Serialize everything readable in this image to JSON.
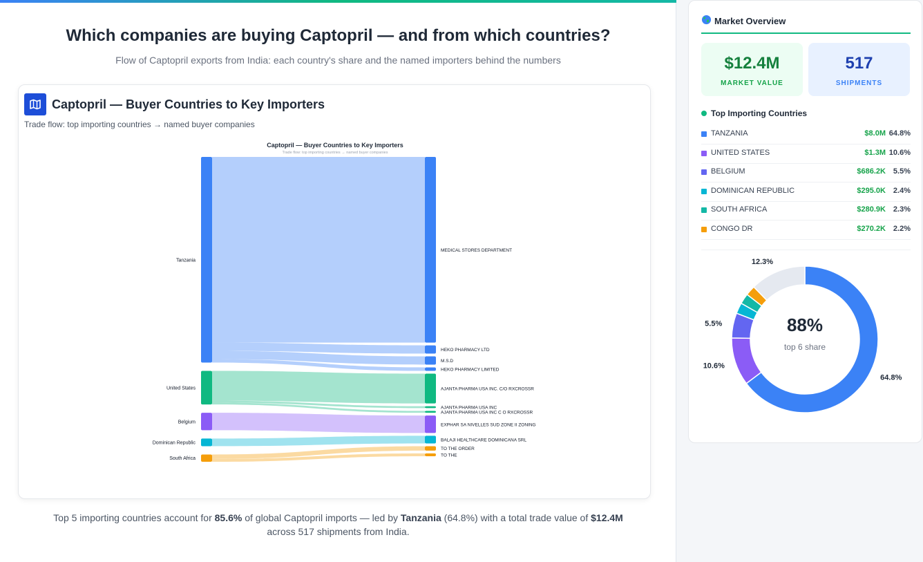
{
  "page": {
    "headline": "Which companies are buying Captopril — and from which countries?",
    "subhead": "Flow of Captopril exports from India: each country's share and the named importers behind the numbers"
  },
  "card": {
    "icon": "map-icon",
    "title": "Captopril — Buyer Countries to Key Importers",
    "subtitle": "Trade flow: top importing countries → named buyer companies"
  },
  "chart_data": {
    "type": "sankey",
    "title": "Captopril — Buyer Countries to Key Importers",
    "subtitle": "Trade flow: top importing countries → named buyer companies",
    "sources": [
      {
        "name": "Tanzania",
        "color": "#3b82f6",
        "value": 64.8
      },
      {
        "name": "United States",
        "color": "#10b981",
        "value": 10.6
      },
      {
        "name": "Belgium",
        "color": "#8b5cf6",
        "value": 5.5
      },
      {
        "name": "Dominican Republic",
        "color": "#06b6d4",
        "value": 2.4
      },
      {
        "name": "South Africa",
        "color": "#f59e0b",
        "value": 2.3
      }
    ],
    "targets": [
      {
        "name": "MEDICAL STORES DEPARTMENT",
        "color": "#3b82f6"
      },
      {
        "name": "HEKO PHARMACY LTD",
        "color": "#3b82f6"
      },
      {
        "name": "M.S.D",
        "color": "#3b82f6"
      },
      {
        "name": "HEKO PHARMACY LIMITED",
        "color": "#3b82f6"
      },
      {
        "name": "AJANTA PHARMA USA INC. C/O RXCROSSR",
        "color": "#10b981"
      },
      {
        "name": "AJANTA PHARMA USA INC",
        "color": "#10b981"
      },
      {
        "name": "AJANTA PHARMA USA INC C O RXCROSSR",
        "color": "#10b981"
      },
      {
        "name": "EXPHAR SA NIVELLES SUD ZONE II ZONING",
        "color": "#8b5cf6"
      },
      {
        "name": "BALAJI HEALTHCARE DOMINICANA SRL",
        "color": "#06b6d4"
      },
      {
        "name": "TO THE ORDER",
        "color": "#f59e0b"
      },
      {
        "name": "TO THE",
        "color": "#f59e0b"
      }
    ],
    "links": [
      {
        "source": "Tanzania",
        "target": "MEDICAL STORES DEPARTMENT",
        "value": 58.5
      },
      {
        "source": "Tanzania",
        "target": "HEKO PHARMACY LTD",
        "value": 2.6
      },
      {
        "source": "Tanzania",
        "target": "M.S.D",
        "value": 2.6
      },
      {
        "source": "Tanzania",
        "target": "HEKO PHARMACY LIMITED",
        "value": 1.1
      },
      {
        "source": "United States",
        "target": "AJANTA PHARMA USA INC. C/O RXCROSSR",
        "value": 9.4
      },
      {
        "source": "United States",
        "target": "AJANTA PHARMA USA INC",
        "value": 0.6
      },
      {
        "source": "United States",
        "target": "AJANTA PHARMA USA INC C O RXCROSSR",
        "value": 0.6
      },
      {
        "source": "Belgium",
        "target": "EXPHAR SA NIVELLES SUD ZONE II ZONING",
        "value": 5.5
      },
      {
        "source": "Dominican Republic",
        "target": "BALAJI HEALTHCARE DOMINICANA SRL",
        "value": 2.4
      },
      {
        "source": "South Africa",
        "target": "TO THE ORDER",
        "value": 1.4
      },
      {
        "source": "South Africa",
        "target": "TO THE",
        "value": 0.9
      }
    ]
  },
  "summary": {
    "p1": "Top 5 importing countries account for ",
    "share": "85.6%",
    "p2": " of global Captopril imports — led by ",
    "leader": "Tanzania",
    "p3": " (64.8%) with a total trade value of ",
    "total": "$12.4M",
    "p4": "across 517 shipments from India."
  },
  "sidebar": {
    "title": "Market Overview",
    "globe_icon": "globe-icon",
    "kpis": {
      "market_value": "$12.4M",
      "market_value_label": "MARKET VALUE",
      "shipments": "517",
      "shipments_label": "SHIPMENTS"
    },
    "list_title": "Top Importing Countries",
    "countries": [
      {
        "name": "TANZANIA",
        "value": "$8.0M",
        "pct": "64.8%",
        "color": "#3b82f6"
      },
      {
        "name": "UNITED STATES",
        "value": "$1.3M",
        "pct": "10.6%",
        "color": "#8b5cf6"
      },
      {
        "name": "BELGIUM",
        "value": "$686.2K",
        "pct": "5.5%",
        "color": "#6366f1"
      },
      {
        "name": "DOMINICAN REPUBLIC",
        "value": "$295.0K",
        "pct": "2.4%",
        "color": "#06b6d4"
      },
      {
        "name": "SOUTH AFRICA",
        "value": "$280.9K",
        "pct": "2.3%",
        "color": "#14b8a6"
      },
      {
        "name": "CONGO DR",
        "value": "$270.2K",
        "pct": "2.2%",
        "color": "#f59e0b"
      }
    ],
    "donut": {
      "center_value": "88%",
      "center_label": "top 6 share",
      "segments": [
        {
          "name": "TANZANIA",
          "value": 64.8,
          "color": "#3b82f6",
          "label": "64.8%"
        },
        {
          "name": "UNITED STATES",
          "value": 10.6,
          "color": "#8b5cf6",
          "label": "10.6%"
        },
        {
          "name": "BELGIUM",
          "value": 5.5,
          "color": "#6366f1",
          "label": "5.5%"
        },
        {
          "name": "DOMINICAN REPUBLIC",
          "value": 2.4,
          "color": "#06b6d4",
          "label": ""
        },
        {
          "name": "SOUTH AFRICA",
          "value": 2.3,
          "color": "#14b8a6",
          "label": ""
        },
        {
          "name": "CONGO DR",
          "value": 2.2,
          "color": "#f59e0b",
          "label": ""
        },
        {
          "name": "Other",
          "value": 12.3,
          "color": "#e5e9f0",
          "label": "12.3%"
        }
      ]
    }
  }
}
